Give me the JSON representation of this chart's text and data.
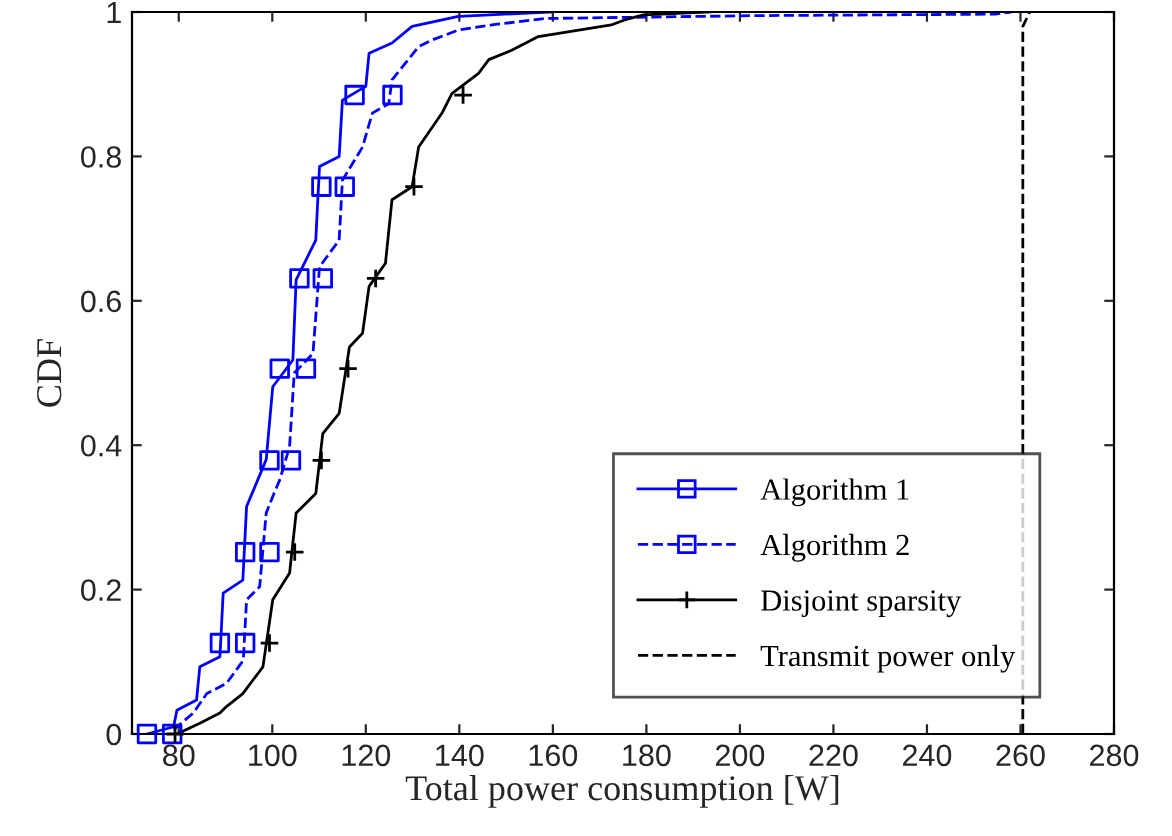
{
  "chart_data": {
    "type": "line",
    "xlabel": "Total power consumption [W]",
    "ylabel": "CDF",
    "xlim": [
      70,
      280
    ],
    "ylim": [
      0,
      1
    ],
    "xticks": [
      80,
      100,
      120,
      140,
      160,
      180,
      200,
      220,
      240,
      260,
      280
    ],
    "yticks": [
      0,
      0.2,
      0.4,
      0.6,
      0.8,
      1
    ],
    "grid": false,
    "legend": "bottom right",
    "series": [
      {
        "name": "Algorithm 1",
        "color": "#0000ff",
        "line_style": "solid",
        "x": [
          73.2,
          78.9,
          79.6,
          83.8,
          84.5,
          88.8,
          89.5,
          93.7,
          94.5,
          98.7,
          100.1,
          104.4,
          105.1,
          109.3,
          110.1,
          114.3,
          115.0,
          120.0,
          120.7,
          125.6,
          129.9,
          139.8,
          159.9
        ],
        "values": [
          0,
          0.01,
          0.033,
          0.047,
          0.093,
          0.107,
          0.195,
          0.213,
          0.315,
          0.38,
          0.481,
          0.518,
          0.629,
          0.684,
          0.786,
          0.8,
          0.878,
          0.897,
          0.943,
          0.957,
          0.98,
          0.994,
          1
        ]
      },
      {
        "type": "scatter",
        "color": "#0000ff",
        "marker": "square",
        "x": [
          73.2,
          88.8,
          94.2,
          99.4,
          101.6,
          105.8,
          110.5,
          117.6
        ],
        "values": [
          0,
          0.126,
          0.252,
          0.379,
          0.506,
          0.631,
          0.758,
          0.885
        ]
      },
      {
        "name": "Algorithm 2",
        "color": "#0000ff",
        "line_style": "dashed",
        "x": [
          78.9,
          83.1,
          86.0,
          90.2,
          93.8,
          94.5,
          97.3,
          98.7,
          100.1,
          101.6,
          103.7,
          104.7,
          108.7,
          110.1,
          114.3,
          115.0,
          119.3,
          121.4,
          124.9,
          125.6,
          131.3,
          134.1,
          139.8,
          146.9,
          158.2,
          203.6,
          254.6,
          258
        ],
        "values": [
          0.006,
          0.029,
          0.056,
          0.07,
          0.102,
          0.186,
          0.204,
          0.306,
          0.329,
          0.352,
          0.398,
          0.5,
          0.527,
          0.647,
          0.684,
          0.767,
          0.813,
          0.86,
          0.873,
          0.906,
          0.952,
          0.961,
          0.975,
          0.982,
          0.991,
          0.995,
          0.997,
          1
        ]
      },
      {
        "type": "scatter",
        "color": "#0000ff",
        "marker": "square",
        "x": [
          78.6,
          94.2,
          99.4,
          104.0,
          107.2,
          110.8,
          115.5,
          125.7
        ],
        "values": [
          0,
          0.126,
          0.252,
          0.379,
          0.506,
          0.631,
          0.758,
          0.885
        ]
      },
      {
        "name": "Disjoint sparsity",
        "color": "#000000",
        "line_style": "solid",
        "x": [
          79.6,
          84.5,
          88.8,
          90.2,
          93.7,
          98.0,
          100.1,
          103.7,
          105.1,
          109.3,
          110.8,
          114.3,
          116.5,
          119.3,
          120.7,
          124.2,
          125.6,
          129.9,
          131.3,
          136.3,
          138.4,
          144.1,
          146.3,
          151.2,
          156.9,
          172.5,
          175.3,
          179.4,
          193.6
        ],
        "values": [
          0,
          0.015,
          0.029,
          0.038,
          0.056,
          0.093,
          0.186,
          0.223,
          0.306,
          0.333,
          0.416,
          0.444,
          0.536,
          0.555,
          0.62,
          0.652,
          0.74,
          0.758,
          0.813,
          0.86,
          0.887,
          0.915,
          0.934,
          0.947,
          0.966,
          0.982,
          0.989,
          0.996,
          1
        ]
      },
      {
        "type": "scatter",
        "color": "#000000",
        "marker": "cross",
        "x": [
          79.2,
          99.4,
          104.8,
          110.5,
          116.2,
          122.1,
          130.3,
          140.8
        ],
        "values": [
          0,
          0.126,
          0.252,
          0.379,
          0.506,
          0.631,
          0.758,
          0.885
        ]
      },
      {
        "name": "Transmit power only",
        "color": "#000000",
        "line_style": "dashed",
        "x": [
          260.5,
          260.5,
          262
        ],
        "values": [
          0,
          0.98,
          1
        ]
      }
    ]
  }
}
